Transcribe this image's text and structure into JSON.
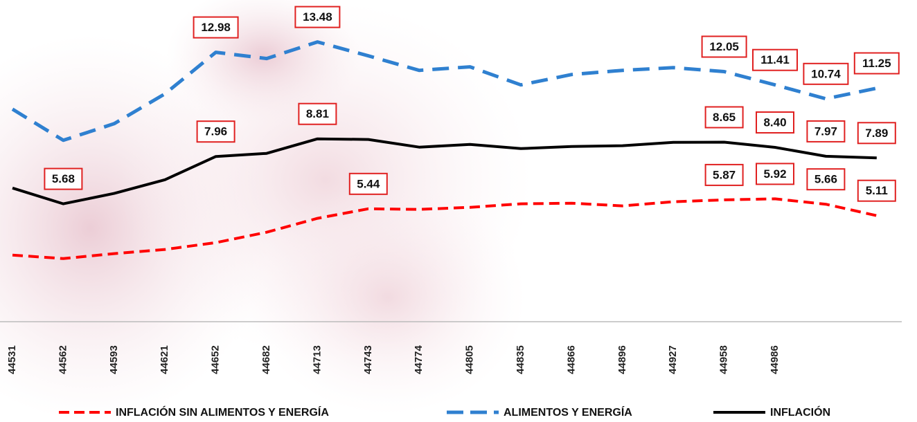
{
  "chart_data": {
    "type": "line",
    "categories": [
      "44531",
      "44562",
      "44593",
      "44621",
      "44652",
      "44682",
      "44713",
      "44743",
      "44774",
      "44805",
      "44835",
      "44866",
      "44896",
      "44927",
      "44958",
      "44986",
      null,
      null
    ],
    "series": [
      {
        "name": "INFLACIÓN SIN ALIMENTOS Y ENERGÍA",
        "color": "#ff0000",
        "dash": "dashed",
        "values": [
          3.21,
          3.04,
          3.28,
          3.48,
          3.81,
          4.31,
          4.98,
          5.44,
          5.41,
          5.51,
          5.68,
          5.71,
          5.58,
          5.78,
          5.87,
          5.92,
          5.66,
          5.11
        ],
        "value_labels": [
          null,
          null,
          null,
          null,
          null,
          null,
          null,
          "5.44",
          null,
          null,
          null,
          null,
          null,
          null,
          "5.87",
          "5.92",
          "5.66",
          "5.11"
        ]
      },
      {
        "name": "ALIMENTOS Y ENERGÍA",
        "color": "#2f80d0",
        "dash": "dashed",
        "values": [
          10.24,
          8.74,
          9.54,
          10.98,
          12.98,
          12.68,
          13.48,
          12.81,
          12.11,
          12.28,
          11.41,
          11.91,
          12.11,
          12.24,
          12.05,
          11.41,
          10.74,
          11.25
        ],
        "value_labels": [
          null,
          null,
          null,
          null,
          "12.98",
          null,
          "13.48",
          null,
          null,
          null,
          null,
          null,
          null,
          null,
          "12.05",
          "11.41",
          "10.74",
          "11.25"
        ]
      },
      {
        "name": "INFLACIÓN",
        "color": "#000000",
        "dash": "solid",
        "values": [
          6.44,
          5.68,
          6.18,
          6.84,
          7.96,
          8.11,
          8.81,
          8.78,
          8.41,
          8.54,
          8.34,
          8.44,
          8.48,
          8.64,
          8.65,
          8.4,
          7.97,
          7.89
        ],
        "value_labels": [
          null,
          "5.68",
          null,
          null,
          "7.96",
          null,
          "8.81",
          null,
          null,
          null,
          null,
          null,
          null,
          null,
          "8.65",
          "8.40",
          "7.97",
          "7.89"
        ]
      }
    ],
    "ylim": [
      0,
      15.5
    ]
  }
}
